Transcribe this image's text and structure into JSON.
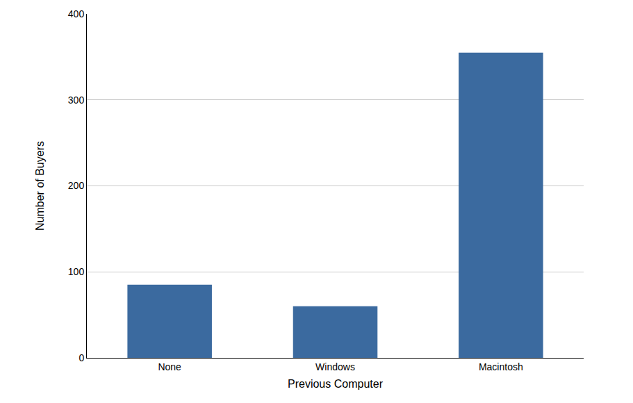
{
  "chart_data": {
    "type": "bar",
    "x_label": "Previous Computer",
    "y_label": "Number of Buyers",
    "categories": [
      "None",
      "Windows",
      "Macintosh"
    ],
    "values": [
      85,
      60,
      355
    ],
    "color": "#3b6a9f",
    "ylim": [
      0,
      400
    ],
    "yticks": [
      0,
      100,
      200,
      300,
      400
    ],
    "grid": true
  }
}
